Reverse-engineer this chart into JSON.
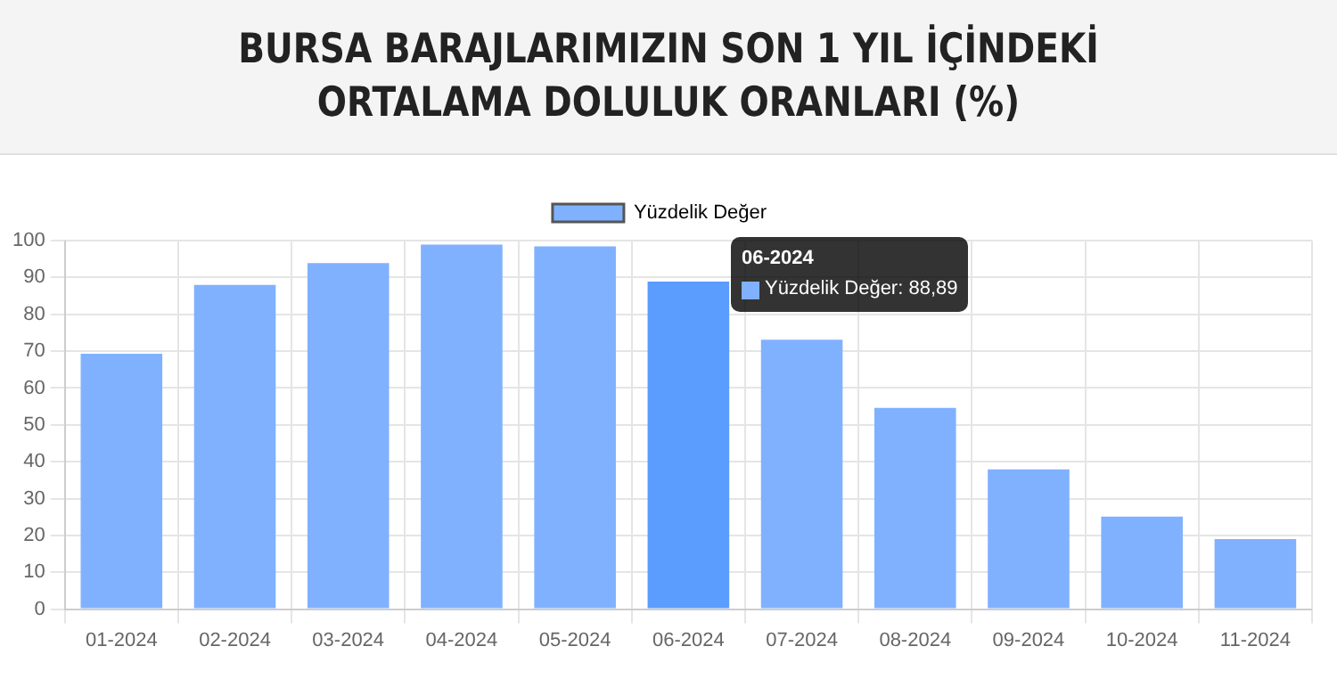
{
  "chart_data": {
    "type": "bar",
    "title": "BURSA BARAJLARIMIZIN SON 1 YIL İÇİNDEKİ ORTALAMA DOLULUK ORANLARI (%)",
    "categories": [
      "01-2024",
      "02-2024",
      "03-2024",
      "04-2024",
      "05-2024",
      "06-2024",
      "07-2024",
      "08-2024",
      "09-2024",
      "10-2024",
      "11-2024"
    ],
    "series": [
      {
        "name": "Yüzdelik Değer",
        "color": "#80b1ff",
        "colors": [
          "#80b1ff",
          "#80b1ff",
          "#80b1ff",
          "#80b1ff",
          "#80b1ff",
          "#5b9cff",
          "#80b1ff",
          "#80b1ff",
          "#80b1ff",
          "#80b1ff",
          "#80b1ff"
        ],
        "values": [
          69.3,
          88,
          93.9,
          98.9,
          98.4,
          88.89,
          73.1,
          54.6,
          37.9,
          25.1,
          19
        ]
      }
    ],
    "ylim": [
      0,
      100
    ],
    "yticks": [
      0,
      10,
      20,
      30,
      40,
      50,
      60,
      70,
      80,
      90,
      100
    ],
    "grid": true,
    "legend": "top",
    "annotations": [
      "06-2024",
      "Yüzdelik Değer: 88,89"
    ]
  }
}
